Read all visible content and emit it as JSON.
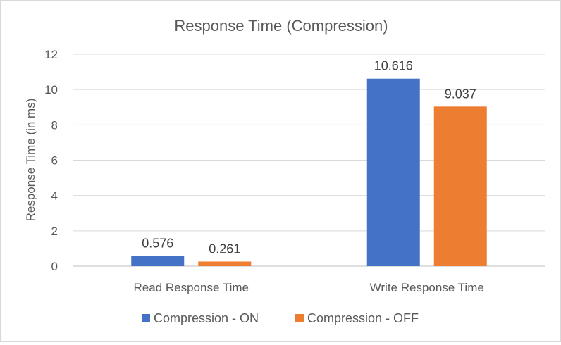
{
  "chart_data": {
    "type": "bar",
    "title": "Response Time (Compression)",
    "xlabel": "",
    "ylabel": "Response Time (in ms)",
    "categories": [
      "Read Response Time",
      "Write Response Time"
    ],
    "series": [
      {
        "name": "Compression - ON",
        "values": [
          0.576,
          10.616
        ],
        "color": "#4472C4"
      },
      {
        "name": "Compression - OFF",
        "values": [
          0.261,
          9.037
        ],
        "color": "#ED7D31"
      }
    ],
    "yticks": [
      0,
      2,
      4,
      6,
      8,
      10,
      12
    ],
    "ylim": [
      0,
      12
    ],
    "grid": true,
    "legend_position": "bottom"
  }
}
